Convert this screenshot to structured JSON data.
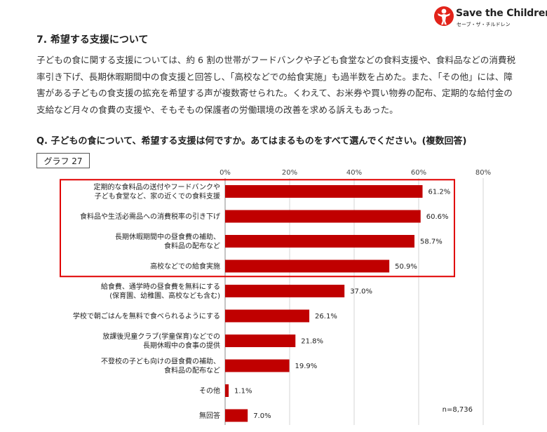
{
  "logo": {
    "name": "Save the Children",
    "sub": "セーブ・ザ・チルドレン"
  },
  "section_title": "7. 希望する支援について",
  "body_text": "子どもの食に関する支援については、約 6 割の世帯がフードバンクや子ども食堂などの食料支援や、食料品などの消費税率引き下げ、長期休暇期間中の食支援と回答し、「高校などでの給食実施」も過半数を占めた。また、「その他」には、障害がある子どもの食支援の拡充を希望する声が複数寄せられた。くわえて、お米券や買い物券の配布、定期的な給付金の支給など月々の食費の支援や、そもそもの保護者の労働環境の改善を求める訴えもあった。",
  "question": "Q. 子どもの食について、希望する支援は何ですか。あてはまるものをすべて選んでください。(複数回答)",
  "graph_label": "グラフ 27",
  "chart_data": {
    "type": "bar",
    "orientation": "horizontal",
    "categories": [
      [
        "定期的な食料品の送付やフードバンクや",
        "子ども食堂など、家の近くでの食料支援"
      ],
      [
        "食料品や生活必需品への消費税率の引き下げ"
      ],
      [
        "長期休暇期間中の昼食費の補助、",
        "食料品の配布など"
      ],
      [
        "高校などでの給食実施"
      ],
      [
        "給食費、通学時の昼食費を無料にする",
        "(保育園、幼稚園、高校なども含む)"
      ],
      [
        "学校で朝ごはんを無料で食べられるようにする"
      ],
      [
        "放課後児童クラブ(学童保育)などでの",
        "長期休暇中の食事の提供"
      ],
      [
        "不登校の子ども向けの昼食費の補助、",
        "食料品の配布など"
      ],
      [
        "その他"
      ],
      [
        "無回答"
      ]
    ],
    "values": [
      61.2,
      60.6,
      58.7,
      50.9,
      37.0,
      26.1,
      21.8,
      19.9,
      1.1,
      7.0
    ],
    "value_labels": [
      "61.2%",
      "60.6%",
      "58.7%",
      "50.9%",
      "37.0%",
      "26.1%",
      "21.8%",
      "19.9%",
      "1.1%",
      "7.0%"
    ],
    "x_ticks": [
      "0%",
      "20%",
      "40%",
      "60%",
      "80%"
    ],
    "xlim": [
      0,
      80
    ],
    "grid": true,
    "bar_color": "#c00000",
    "highlight_color": "#e00000",
    "highlighted_categories": 4,
    "n_label": "n=8,736"
  }
}
